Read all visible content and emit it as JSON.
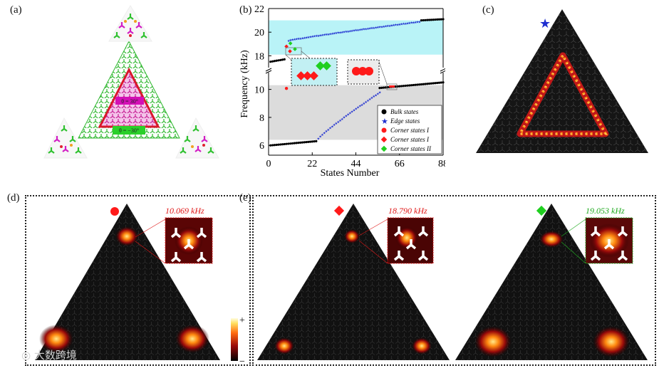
{
  "panels": {
    "a": {
      "label": "(a)",
      "theta_inner": "θ = 30°",
      "theta_outer": "θ = −30°"
    },
    "b": {
      "label": "(b)"
    },
    "c": {
      "label": "(c)"
    },
    "d": {
      "label": "(d)",
      "freq": "10.069 kHz"
    },
    "e": {
      "label": "(e)",
      "freq_left": "18.790 kHz",
      "freq_right": "19.053 kHz"
    }
  },
  "colorbar": {
    "plus": "+",
    "minus": "−"
  },
  "watermark": "大数跨境",
  "colors": {
    "bulk": "#000000",
    "edge": "#1f2fd0",
    "corner_I": "#ff1a1a",
    "corner_II": "#1fcf1f",
    "cyan_band": "#b9f3f7",
    "gray_band": "#dcdcdc"
  },
  "chart_data": {
    "type": "scatter",
    "title": "",
    "xlabel": "States Number",
    "ylabel": "Frequency (kHz)",
    "xlim": [
      0,
      88
    ],
    "xticks": [
      0,
      22,
      44,
      66,
      88
    ],
    "ylim_lower": [
      5.3,
      11.2
    ],
    "ylim_upper": [
      17,
      22
    ],
    "yticks_lower": [
      6,
      8,
      10
    ],
    "yticks_upper": [
      18,
      20,
      22
    ],
    "bands": [
      {
        "name": "upper-gap",
        "y": [
          18.1,
          21.0
        ],
        "color": "cyan"
      },
      {
        "name": "lower-gap",
        "y": [
          6.4,
          10.3
        ],
        "color": "gray"
      }
    ],
    "legend": [
      "Bulk states",
      "Edge states",
      "Corner states I",
      "Corner states I",
      "Corner states II"
    ],
    "series": [
      {
        "name": "Bulk states",
        "segments": [
          {
            "x": [
              1,
              24
            ],
            "y": [
              6.0,
              6.3
            ]
          },
          {
            "x": [
              56,
              88
            ],
            "y": [
              10.1,
              10.5
            ]
          },
          {
            "x": [
              1,
              8
            ],
            "y": [
              17.5,
              17.7
            ]
          },
          {
            "x": [
              77,
              88
            ],
            "y": [
              21.0,
              21.1
            ]
          }
        ]
      },
      {
        "name": "Edge states",
        "segments": [
          {
            "x": [
              25,
              56
            ],
            "y": [
              6.5,
              9.8
            ]
          },
          {
            "x": [
              10,
              76
            ],
            "y": [
              19.3,
              20.9
            ]
          }
        ]
      },
      {
        "name": "Corner states I (circle)",
        "points": [
          {
            "x": 9,
            "y": 10.069
          }
        ]
      },
      {
        "name": "Corner states I (diamond)",
        "points": [
          {
            "x": 9,
            "y": 18.79
          }
        ]
      },
      {
        "name": "Corner states II",
        "points": [
          {
            "x": 11,
            "y": 19.053
          }
        ]
      }
    ]
  }
}
